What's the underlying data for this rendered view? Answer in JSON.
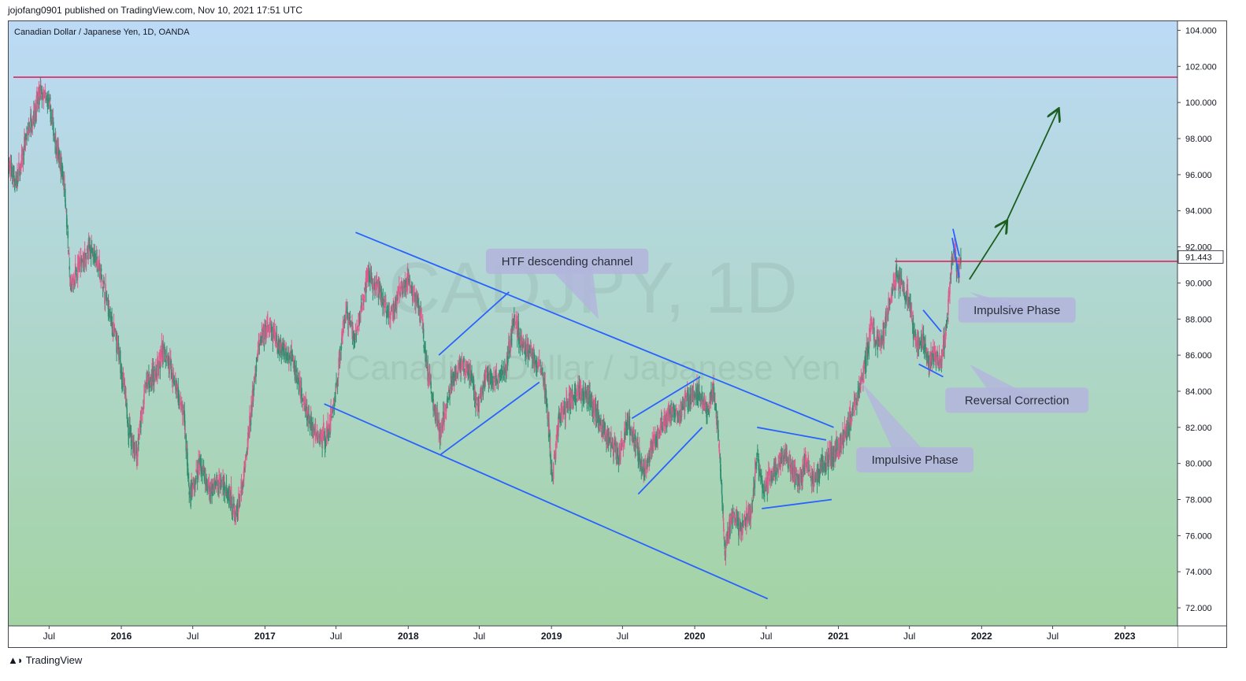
{
  "header": {
    "publisher": "jojofang0901 published on TradingView.com, Nov 10, 2021 17:51 UTC"
  },
  "symbol": {
    "title": "Canadian Dollar / Japanese Yen, 1D, OANDA",
    "watermark_ticker": "CADJPY, 1D",
    "watermark_name": "Canadian Dollar / Japanese Yen"
  },
  "footer": {
    "brand": "TradingView",
    "logo_icon": "tradingview-logo-icon"
  },
  "colors": {
    "bg_top": "#bcdaf6",
    "bg_bottom": "#a3d3a3",
    "up": "#e05b8e",
    "down": "#2f8f6f",
    "trendline": "#2962ff",
    "level": "#e0245e",
    "arrow": "#1b5e20",
    "callout": "#b3b6dc",
    "price_label_bg": "#ffffff"
  },
  "chart_data": {
    "type": "candlestick",
    "title": "Canadian Dollar / Japanese Yen, 1D, OANDA",
    "ylim": [
      71,
      104.5
    ],
    "xlim": [
      "2015-03-20",
      "2023-05-15"
    ],
    "y_ticks": [
      "72.000",
      "74.000",
      "76.000",
      "78.000",
      "80.000",
      "82.000",
      "84.000",
      "86.000",
      "88.000",
      "90.000",
      "92.000",
      "94.000",
      "96.000",
      "98.000",
      "100.000",
      "102.000",
      "104.000"
    ],
    "x_ticks": [
      {
        "label": "Jul",
        "date": "2015-07-01"
      },
      {
        "label": "2016",
        "date": "2016-01-01"
      },
      {
        "label": "Jul",
        "date": "2016-07-01"
      },
      {
        "label": "2017",
        "date": "2017-01-01"
      },
      {
        "label": "Jul",
        "date": "2017-07-01"
      },
      {
        "label": "2018",
        "date": "2018-01-01"
      },
      {
        "label": "Jul",
        "date": "2018-07-01"
      },
      {
        "label": "2019",
        "date": "2019-01-01"
      },
      {
        "label": "Jul",
        "date": "2019-07-01"
      },
      {
        "label": "2020",
        "date": "2020-01-01"
      },
      {
        "label": "Jul",
        "date": "2020-07-01"
      },
      {
        "label": "2021",
        "date": "2021-01-01"
      },
      {
        "label": "Jul",
        "date": "2021-07-01"
      },
      {
        "label": "2022",
        "date": "2022-01-01"
      },
      {
        "label": "Jul",
        "date": "2022-07-01"
      },
      {
        "label": "2023",
        "date": "2023-01-01"
      }
    ],
    "price_path": [
      [
        "2015-03-20",
        96.5
      ],
      [
        "2015-04-10",
        95.5
      ],
      [
        "2015-05-10",
        98.5
      ],
      [
        "2015-06-10",
        100.5
      ],
      [
        "2015-07-01",
        100.0
      ],
      [
        "2015-07-20",
        97.5
      ],
      [
        "2015-08-10",
        95.5
      ],
      [
        "2015-08-25",
        89.5
      ],
      [
        "2015-09-15",
        91.0
      ],
      [
        "2015-10-20",
        92.0
      ],
      [
        "2015-11-10",
        90.5
      ],
      [
        "2015-12-01",
        88.5
      ],
      [
        "2016-01-01",
        85.5
      ],
      [
        "2016-01-20",
        82.0
      ],
      [
        "2016-02-10",
        80.5
      ],
      [
        "2016-03-05",
        84.5
      ],
      [
        "2016-04-01",
        85.0
      ],
      [
        "2016-04-20",
        86.5
      ],
      [
        "2016-05-15",
        84.5
      ],
      [
        "2016-06-10",
        82.5
      ],
      [
        "2016-06-24",
        78.0
      ],
      [
        "2016-07-20",
        80.0
      ],
      [
        "2016-08-15",
        78.5
      ],
      [
        "2016-09-10",
        79.0
      ],
      [
        "2016-10-01",
        78.5
      ],
      [
        "2016-10-20",
        77.0
      ],
      [
        "2016-11-08",
        79.0
      ],
      [
        "2016-11-25",
        82.5
      ],
      [
        "2016-12-15",
        86.5
      ],
      [
        "2017-01-10",
        87.5
      ],
      [
        "2017-02-10",
        86.5
      ],
      [
        "2017-03-10",
        86.0
      ],
      [
        "2017-04-15",
        83.0
      ],
      [
        "2017-05-10",
        81.5
      ],
      [
        "2017-06-10",
        81.5
      ],
      [
        "2017-07-01",
        84.0
      ],
      [
        "2017-07-25",
        88.5
      ],
      [
        "2017-08-20",
        87.0
      ],
      [
        "2017-09-20",
        90.5
      ],
      [
        "2017-10-20",
        89.5
      ],
      [
        "2017-11-15",
        88.0
      ],
      [
        "2017-12-10",
        89.5
      ],
      [
        "2018-01-01",
        90.0
      ],
      [
        "2018-02-01",
        88.5
      ],
      [
        "2018-02-20",
        85.0
      ],
      [
        "2018-03-15",
        82.5
      ],
      [
        "2018-03-25",
        81.5
      ],
      [
        "2018-04-20",
        84.5
      ],
      [
        "2018-05-10",
        85.5
      ],
      [
        "2018-06-10",
        85.0
      ],
      [
        "2018-06-28",
        83.0
      ],
      [
        "2018-07-20",
        85.0
      ],
      [
        "2018-08-15",
        84.5
      ],
      [
        "2018-09-10",
        85.5
      ],
      [
        "2018-09-28",
        88.0
      ],
      [
        "2018-10-20",
        86.5
      ],
      [
        "2018-11-15",
        86.0
      ],
      [
        "2018-12-10",
        85.0
      ],
      [
        "2018-12-24",
        82.5
      ],
      [
        "2019-01-03",
        79.0
      ],
      [
        "2019-01-20",
        82.5
      ],
      [
        "2019-02-15",
        83.5
      ],
      [
        "2019-03-10",
        84.0
      ],
      [
        "2019-04-10",
        83.5
      ],
      [
        "2019-05-10",
        82.0
      ],
      [
        "2019-06-05",
        81.0
      ],
      [
        "2019-06-25",
        80.5
      ],
      [
        "2019-07-15",
        82.5
      ],
      [
        "2019-08-05",
        81.0
      ],
      [
        "2019-08-25",
        79.5
      ],
      [
        "2019-09-15",
        81.0
      ],
      [
        "2019-10-10",
        82.0
      ],
      [
        "2019-11-05",
        83.0
      ],
      [
        "2019-11-25",
        82.5
      ],
      [
        "2019-12-10",
        83.5
      ],
      [
        "2020-01-10",
        84.0
      ],
      [
        "2020-02-01",
        83.0
      ],
      [
        "2020-02-20",
        84.0
      ],
      [
        "2020-03-05",
        80.5
      ],
      [
        "2020-03-18",
        75.0
      ],
      [
        "2020-04-05",
        77.0
      ],
      [
        "2020-05-01",
        76.5
      ],
      [
        "2020-05-25",
        77.5
      ],
      [
        "2020-06-08",
        80.5
      ],
      [
        "2020-06-25",
        78.5
      ],
      [
        "2020-07-20",
        79.5
      ],
      [
        "2020-08-20",
        80.5
      ],
      [
        "2020-09-20",
        79.0
      ],
      [
        "2020-10-10",
        80.0
      ],
      [
        "2020-11-01",
        79.0
      ],
      [
        "2020-11-20",
        80.0
      ],
      [
        "2020-12-20",
        80.5
      ],
      [
        "2021-01-20",
        81.5
      ],
      [
        "2021-02-15",
        83.5
      ],
      [
        "2021-03-05",
        85.0
      ],
      [
        "2021-03-25",
        87.5
      ],
      [
        "2021-04-20",
        86.5
      ],
      [
        "2021-05-10",
        89.0
      ],
      [
        "2021-06-01",
        90.5
      ],
      [
        "2021-06-15",
        89.5
      ],
      [
        "2021-07-01",
        89.0
      ],
      [
        "2021-07-20",
        86.5
      ],
      [
        "2021-08-05",
        87.0
      ],
      [
        "2021-08-20",
        85.5
      ],
      [
        "2021-09-05",
        86.0
      ],
      [
        "2021-09-20",
        85.5
      ],
      [
        "2021-10-01",
        87.0
      ],
      [
        "2021-10-15",
        90.5
      ],
      [
        "2021-10-22",
        92.0
      ],
      [
        "2021-11-03",
        90.5
      ],
      [
        "2021-11-10",
        91.443
      ]
    ],
    "last_price": "91.443",
    "lines": [
      {
        "name": "channel-upper",
        "from": [
          "2017-08-20",
          92.8
        ],
        "to": [
          "2020-12-20",
          82.0
        ],
        "color": "trendline"
      },
      {
        "name": "channel-lower",
        "from": [
          "2017-06-01",
          83.3
        ],
        "to": [
          "2020-07-05",
          72.5
        ],
        "color": "trendline"
      },
      {
        "name": "rising-wedge-1a",
        "from": [
          "2018-03-20",
          86.0
        ],
        "to": [
          "2018-09-15",
          89.5
        ],
        "color": "trendline"
      },
      {
        "name": "rising-wedge-1b",
        "from": [
          "2018-03-25",
          80.5
        ],
        "to": [
          "2018-12-01",
          84.5
        ],
        "color": "trendline"
      },
      {
        "name": "rising-wedge-2a",
        "from": [
          "2019-07-25",
          82.5
        ],
        "to": [
          "2020-01-15",
          84.8
        ],
        "color": "trendline"
      },
      {
        "name": "rising-wedge-2b",
        "from": [
          "2019-08-10",
          78.3
        ],
        "to": [
          "2020-01-20",
          82.0
        ],
        "color": "trendline"
      },
      {
        "name": "triangle-upper",
        "from": [
          "2020-06-08",
          82.0
        ],
        "to": [
          "2020-12-01",
          81.3
        ],
        "color": "trendline"
      },
      {
        "name": "triangle-lower",
        "from": [
          "2020-06-20",
          77.5
        ],
        "to": [
          "2020-12-15",
          78.0
        ],
        "color": "trendline"
      },
      {
        "name": "flag-upper",
        "from": [
          "2021-08-05",
          88.5
        ],
        "to": [
          "2021-09-20",
          87.3
        ],
        "color": "trendline"
      },
      {
        "name": "flag-lower",
        "from": [
          "2021-07-25",
          85.5
        ],
        "to": [
          "2021-09-25",
          84.8
        ],
        "color": "trendline"
      },
      {
        "name": "pennant-a",
        "from": [
          "2021-10-20",
          93.0
        ],
        "to": [
          "2021-11-05",
          91.5
        ],
        "color": "trendline"
      },
      {
        "name": "pennant-b",
        "from": [
          "2021-10-18",
          92.5
        ],
        "to": [
          "2021-11-05",
          90.3
        ],
        "color": "trendline"
      },
      {
        "name": "resistance-high",
        "from": [
          "2015-04-01",
          101.4
        ],
        "to": [
          "2023-05-15",
          101.4
        ],
        "color": "level"
      },
      {
        "name": "breakout-level",
        "from": [
          "2021-05-25",
          91.2
        ],
        "to": [
          "2023-05-15",
          91.2
        ],
        "color": "level"
      }
    ],
    "arrow": {
      "from": [
        "2021-12-01",
        90.2
      ],
      "to": [
        "2022-07-15",
        99.6
      ],
      "mid": [
        "2022-03-05",
        93.4
      ]
    },
    "annotations": [
      {
        "text": "HTF descending channel",
        "at": [
          "2019-02-10",
          91.2
        ],
        "pointer": [
          "2019-05-01",
          88.0
        ]
      },
      {
        "text": "Impulsive Phase",
        "at": [
          "2022-04-01",
          88.5
        ],
        "pointer": [
          "2021-12-01",
          89.5
        ]
      },
      {
        "text": "Reversal Correction",
        "at": [
          "2022-04-01",
          83.5
        ],
        "pointer": [
          "2021-12-01",
          85.5
        ]
      },
      {
        "text": "Impulsive Phase",
        "at": [
          "2021-07-15",
          80.2
        ],
        "pointer": [
          "2021-03-01",
          84.5
        ]
      }
    ]
  }
}
